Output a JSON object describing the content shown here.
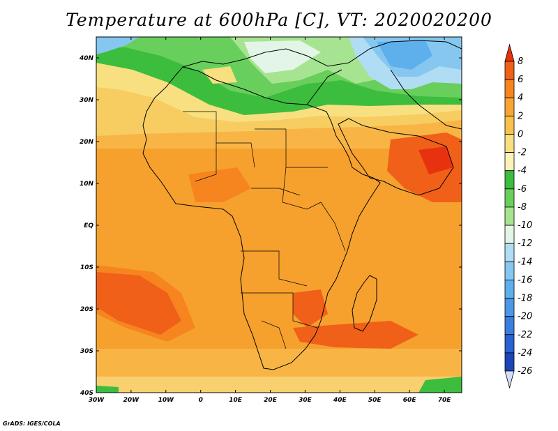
{
  "title": "Temperature at 600hPa [C], VT: 2020020200",
  "credit": "GrADS: IGES/COLA",
  "map": {
    "lon_range": [
      -30,
      75
    ],
    "lat_range": [
      -40,
      45
    ],
    "lon_ticks": [
      {
        "value": -30,
        "label": "30W"
      },
      {
        "value": -20,
        "label": "20W"
      },
      {
        "value": -10,
        "label": "10W"
      },
      {
        "value": 0,
        "label": "0"
      },
      {
        "value": 10,
        "label": "10E"
      },
      {
        "value": 20,
        "label": "20E"
      },
      {
        "value": 30,
        "label": "30E"
      },
      {
        "value": 40,
        "label": "40E"
      },
      {
        "value": 50,
        "label": "50E"
      },
      {
        "value": 60,
        "label": "60E"
      },
      {
        "value": 70,
        "label": "70E"
      }
    ],
    "lat_ticks": [
      {
        "value": 40,
        "label": "40N"
      },
      {
        "value": 30,
        "label": "30N"
      },
      {
        "value": 20,
        "label": "20N"
      },
      {
        "value": 10,
        "label": "10N"
      },
      {
        "value": 0,
        "label": "EQ"
      },
      {
        "value": -10,
        "label": "10S"
      },
      {
        "value": -20,
        "label": "20S"
      },
      {
        "value": -30,
        "label": "30S"
      },
      {
        "value": -40,
        "label": "40S"
      }
    ]
  },
  "colorbar": {
    "labels": [
      "8",
      "6",
      "4",
      "2",
      "0",
      "-2",
      "-4",
      "-6",
      "-8",
      "-10",
      "-12",
      "-14",
      "-16",
      "-18",
      "-20",
      "-22",
      "-24",
      "-26"
    ],
    "colors": [
      "#e8320f",
      "#f06018",
      "#f6851f",
      "#f8a633",
      "#f6c24c",
      "#f8e080",
      "#faf2b8",
      "#3cbd3e",
      "#69cf5c",
      "#a7e492",
      "#e3f5e6",
      "#b0dcf4",
      "#86c7f0",
      "#5eb0ec",
      "#4d98e6",
      "#3a7fe0",
      "#2a62cf",
      "#1c45b8",
      "#152d8e"
    ]
  }
}
